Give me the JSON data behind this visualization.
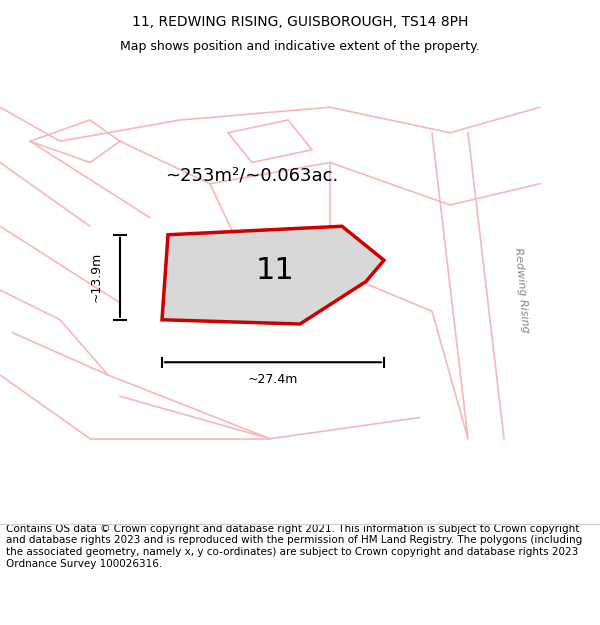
{
  "title": "11, REDWING RISING, GUISBOROUGH, TS14 8PH",
  "subtitle": "Map shows position and indicative extent of the property.",
  "area_label": "~253m²/~0.063ac.",
  "plot_number": "11",
  "width_label": "~27.4m",
  "height_label": "~13.9m",
  "footer": "Contains OS data © Crown copyright and database right 2021. This information is subject to Crown copyright and database rights 2023 and is reproduced with the permission of HM Land Registry. The polygons (including the associated geometry, namely x, y co-ordinates) are subject to Crown copyright and database rights 2023 Ordnance Survey 100026316.",
  "bg_color": "#f5f5f5",
  "map_bg": "#f0f0f0",
  "road_color": "#f5b8b8",
  "plot_fill": "#d8d8d8",
  "plot_edge": "#cc0000",
  "road_label": "Redwing Rising",
  "title_fontsize": 10,
  "subtitle_fontsize": 9,
  "footer_fontsize": 7.5
}
